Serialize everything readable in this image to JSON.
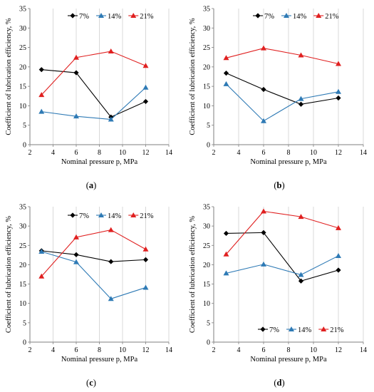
{
  "chart_data": [
    {
      "type": "line",
      "caption": "(a)",
      "xlabel": "Nominal pressure p, MPa",
      "ylabel": "Coefficient of lubrication efficiency, %",
      "xlim": [
        2,
        14
      ],
      "ylim": [
        0,
        35
      ],
      "xticks": [
        2,
        4,
        6,
        8,
        10,
        12,
        14
      ],
      "yticks": [
        0,
        5,
        10,
        15,
        20,
        25,
        30,
        35
      ],
      "grid": "vertical",
      "legend_position": "top",
      "x": [
        3,
        6,
        9,
        12
      ],
      "series": [
        {
          "name": "7%",
          "color": "#000000",
          "marker": "diamond",
          "values": [
            19.3,
            18.5,
            7.1,
            11.1
          ]
        },
        {
          "name": "14%",
          "color": "#2e7ab5",
          "marker": "triangle",
          "values": [
            8.5,
            7.3,
            6.5,
            14.7
          ]
        },
        {
          "name": "21%",
          "color": "#e02020",
          "marker": "triangle",
          "values": [
            12.8,
            22.4,
            24.0,
            20.3
          ]
        }
      ]
    },
    {
      "type": "line",
      "caption": "(b)",
      "xlabel": "Nominal pressure p, MPa",
      "ylabel": "Coefficient of lubrication efficiency, %",
      "xlim": [
        2,
        14
      ],
      "ylim": [
        0,
        35
      ],
      "xticks": [
        2,
        4,
        6,
        8,
        10,
        12,
        14
      ],
      "yticks": [
        0,
        5,
        10,
        15,
        20,
        25,
        30,
        35
      ],
      "grid": "vertical",
      "legend_position": "top",
      "x": [
        3,
        6,
        9,
        12
      ],
      "series": [
        {
          "name": "7%",
          "color": "#000000",
          "marker": "diamond",
          "values": [
            18.4,
            14.2,
            10.4,
            12.0
          ]
        },
        {
          "name": "14%",
          "color": "#2e7ab5",
          "marker": "triangle",
          "values": [
            15.6,
            6.1,
            11.8,
            13.6
          ]
        },
        {
          "name": "21%",
          "color": "#e02020",
          "marker": "triangle",
          "values": [
            22.3,
            24.8,
            23.0,
            20.8
          ]
        }
      ]
    },
    {
      "type": "line",
      "caption": "(c)",
      "xlabel": "Nominal pressure p, MPa",
      "ylabel": "Coefficient of lubrication efficiency, %",
      "xlim": [
        2,
        14
      ],
      "ylim": [
        0,
        35
      ],
      "xticks": [
        2,
        4,
        6,
        8,
        10,
        12,
        14
      ],
      "yticks": [
        0,
        5,
        10,
        15,
        20,
        25,
        30,
        35
      ],
      "grid": "vertical",
      "legend_position": "top",
      "x": [
        3,
        6,
        9,
        12
      ],
      "series": [
        {
          "name": "7%",
          "color": "#000000",
          "marker": "diamond",
          "values": [
            23.6,
            22.6,
            20.8,
            21.3
          ]
        },
        {
          "name": "14%",
          "color": "#2e7ab5",
          "marker": "triangle",
          "values": [
            23.4,
            20.7,
            11.2,
            14.1
          ]
        },
        {
          "name": "21%",
          "color": "#e02020",
          "marker": "triangle",
          "values": [
            17.0,
            27.1,
            29.0,
            24.0
          ]
        }
      ]
    },
    {
      "type": "line",
      "caption": "(d)",
      "xlabel": "Nominal pressure p, MPa",
      "ylabel": "Coefficient of lubrication efficiency, %",
      "xlim": [
        2,
        14
      ],
      "ylim": [
        0,
        35
      ],
      "xticks": [
        2,
        4,
        6,
        8,
        10,
        12,
        14
      ],
      "yticks": [
        0,
        5,
        10,
        15,
        20,
        25,
        30,
        35
      ],
      "grid": "vertical",
      "legend_position": "bottom",
      "x": [
        3,
        6,
        9,
        12
      ],
      "series": [
        {
          "name": "7%",
          "color": "#000000",
          "marker": "diamond",
          "values": [
            28.1,
            28.3,
            15.8,
            18.6
          ]
        },
        {
          "name": "14%",
          "color": "#2e7ab5",
          "marker": "triangle",
          "values": [
            17.8,
            20.1,
            17.4,
            22.3
          ]
        },
        {
          "name": "21%",
          "color": "#e02020",
          "marker": "triangle",
          "values": [
            22.7,
            33.8,
            32.4,
            29.5
          ]
        }
      ]
    }
  ]
}
